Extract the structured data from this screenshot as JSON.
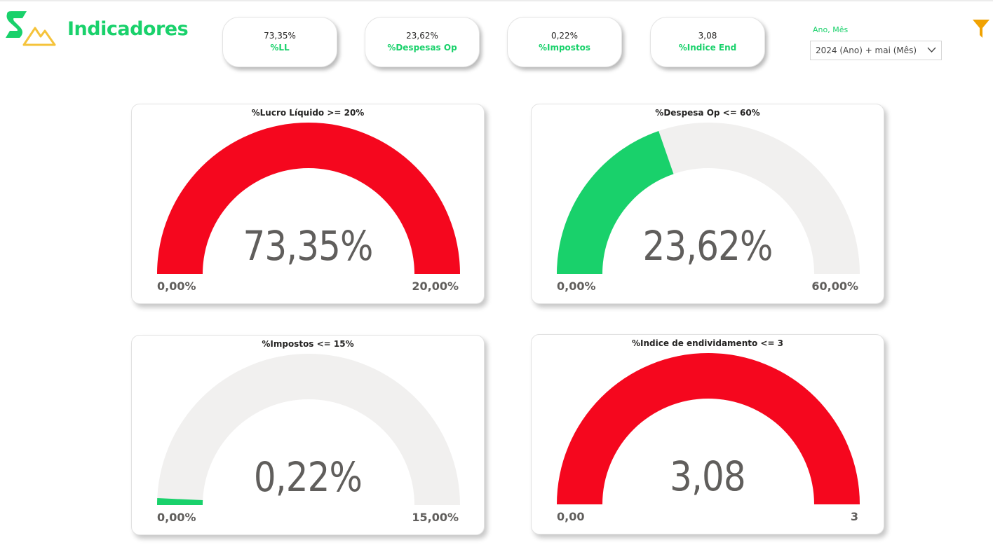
{
  "page": {
    "title": "Indicadores"
  },
  "colors": {
    "accent": "#19d16b",
    "logo_yellow": "#f5c33b",
    "filter": "#f0a202",
    "gauge_red": "#f5071e",
    "gauge_green": "#19d16b",
    "gauge_track": "#f1f0ef"
  },
  "kpis": [
    {
      "value": "73,35%",
      "label": "%LL"
    },
    {
      "value": "23,62%",
      "label": "%Despesas Op"
    },
    {
      "value": "0,22%",
      "label": "%Impostos"
    },
    {
      "value": "3,08",
      "label": "%Indice End"
    }
  ],
  "slicer": {
    "title": "Ano, Mês",
    "value": "2024 (Ano) + mai (Mês)"
  },
  "icons": {
    "logo": "logo-icon",
    "filter": "filter-icon",
    "chevron": "chevron-down-icon"
  },
  "gauges": [
    {
      "title": "%Lucro Líquido >= 20%",
      "value_text": "73,35%",
      "min_text": "0,00%",
      "max_text": "20,00%",
      "min": 0,
      "max": 20,
      "value": 73.35,
      "fill_color": "#f5071e"
    },
    {
      "title": "%Despesa Op <= 60%",
      "value_text": "23,62%",
      "min_text": "0,00%",
      "max_text": "60,00%",
      "min": 0,
      "max": 60,
      "value": 23.62,
      "fill_color": "#19d16b"
    },
    {
      "title": "%Impostos <= 15%",
      "value_text": "0,22%",
      "min_text": "0,00%",
      "max_text": "15,00%",
      "min": 0,
      "max": 15,
      "value": 0.22,
      "fill_color": "#19d16b"
    },
    {
      "title": "%Indice de endividamento <= 3",
      "value_text": "3,08",
      "min_text": "0,00",
      "max_text": "3",
      "min": 0,
      "max": 3,
      "value": 3.08,
      "fill_color": "#f5071e"
    }
  ]
}
